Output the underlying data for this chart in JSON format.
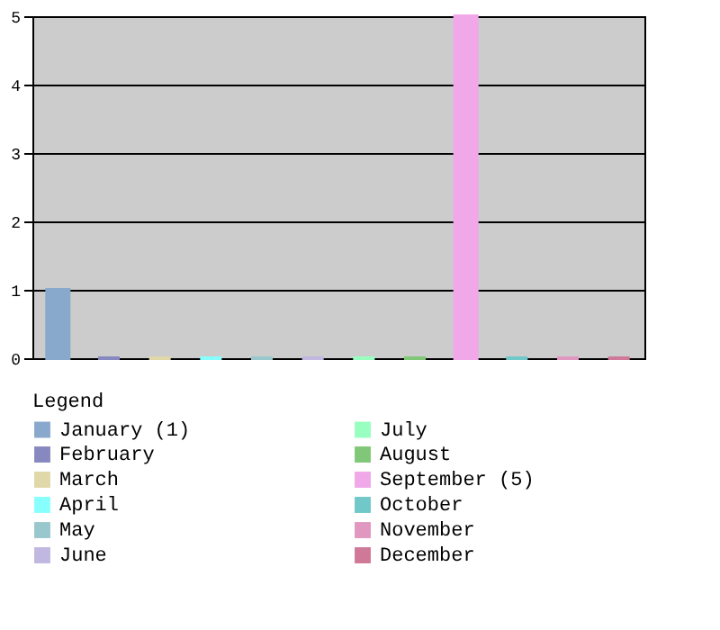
{
  "chart_data": {
    "type": "bar",
    "legend_title": "Legend",
    "categories": [
      null,
      null,
      null,
      null,
      null,
      null,
      null,
      null,
      null,
      null,
      null,
      null
    ],
    "series": [
      {
        "name": "January (1)",
        "color": "#88a8cc",
        "values": [
          1,
          null,
          null,
          null,
          null,
          null,
          null,
          null,
          null,
          null,
          null,
          null
        ]
      },
      {
        "name": "February",
        "color": "#8888c0",
        "values": [
          null,
          0,
          null,
          null,
          null,
          null,
          null,
          null,
          null,
          null,
          null,
          null
        ]
      },
      {
        "name": "March",
        "color": "#e0d8a8",
        "values": [
          null,
          null,
          0,
          null,
          null,
          null,
          null,
          null,
          null,
          null,
          null,
          null
        ]
      },
      {
        "name": "April",
        "color": "#88ffff",
        "values": [
          null,
          null,
          null,
          0,
          null,
          null,
          null,
          null,
          null,
          null,
          null,
          null
        ]
      },
      {
        "name": "May",
        "color": "#98c8cc",
        "values": [
          null,
          null,
          null,
          null,
          0,
          null,
          null,
          null,
          null,
          null,
          null,
          null
        ]
      },
      {
        "name": "June",
        "color": "#c0b8e0",
        "values": [
          null,
          null,
          null,
          null,
          null,
          0,
          null,
          null,
          null,
          null,
          null,
          null
        ]
      },
      {
        "name": "July",
        "color": "#98ffc0",
        "values": [
          null,
          null,
          null,
          null,
          null,
          null,
          0,
          null,
          null,
          null,
          null,
          null
        ]
      },
      {
        "name": "August",
        "color": "#80c878",
        "values": [
          null,
          null,
          null,
          null,
          null,
          null,
          null,
          0,
          null,
          null,
          null,
          null
        ]
      },
      {
        "name": "September (5)",
        "color": "#f0a8e8",
        "values": [
          null,
          null,
          null,
          null,
          null,
          null,
          null,
          null,
          5,
          null,
          null,
          null
        ]
      },
      {
        "name": "October",
        "color": "#70c8c8",
        "values": [
          null,
          null,
          null,
          null,
          null,
          null,
          null,
          null,
          null,
          0,
          null,
          null
        ]
      },
      {
        "name": "November",
        "color": "#e098c0",
        "values": [
          null,
          null,
          null,
          null,
          null,
          null,
          null,
          null,
          null,
          null,
          0,
          null
        ]
      },
      {
        "name": "December",
        "color": "#d07898",
        "values": [
          null,
          null,
          null,
          null,
          null,
          null,
          null,
          null,
          null,
          null,
          null,
          0
        ]
      }
    ],
    "ylim": [
      0,
      5
    ],
    "yticks": [
      0,
      1,
      2,
      3,
      4,
      5
    ],
    "grid": "y",
    "legend": "bottom",
    "tick_labels": "y"
  }
}
